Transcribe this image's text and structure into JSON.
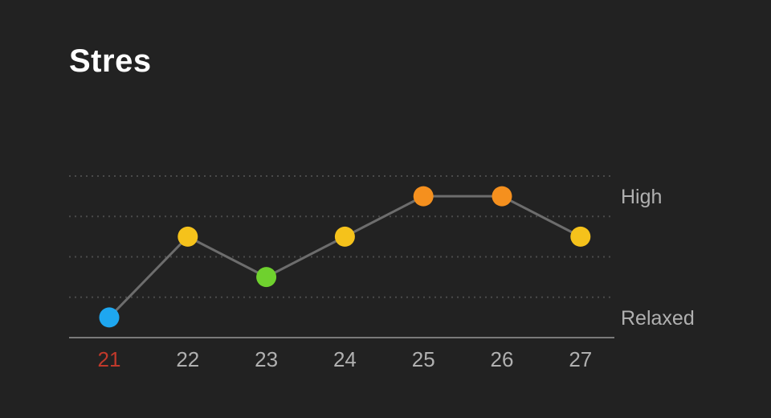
{
  "title": "Stres",
  "chart_data": {
    "type": "line",
    "title": "Stres",
    "xlabel": "",
    "ylabel": "",
    "categories": [
      "21",
      "22",
      "23",
      "24",
      "25",
      "26",
      "27"
    ],
    "y_tick_labels": [
      "Relaxed",
      "High"
    ],
    "ylim": [
      0,
      4
    ],
    "grid": true,
    "series": [
      {
        "values": [
          0.5,
          2.5,
          1.5,
          2.5,
          3.5,
          3.5,
          2.5
        ],
        "point_colors": [
          "#1ea7f0",
          "#f5c21b",
          "#6fd12e",
          "#f5c21b",
          "#f5901e",
          "#f5901e",
          "#f5c21b"
        ]
      }
    ],
    "highlight_category": "21",
    "colors": {
      "background": "#222222",
      "line": "#6d6d6d",
      "grid": "#4a4a4a",
      "baseline": "#7a7a7a",
      "tick_label": "#b0b0b0",
      "highlight_tick": "#c0392b"
    }
  }
}
